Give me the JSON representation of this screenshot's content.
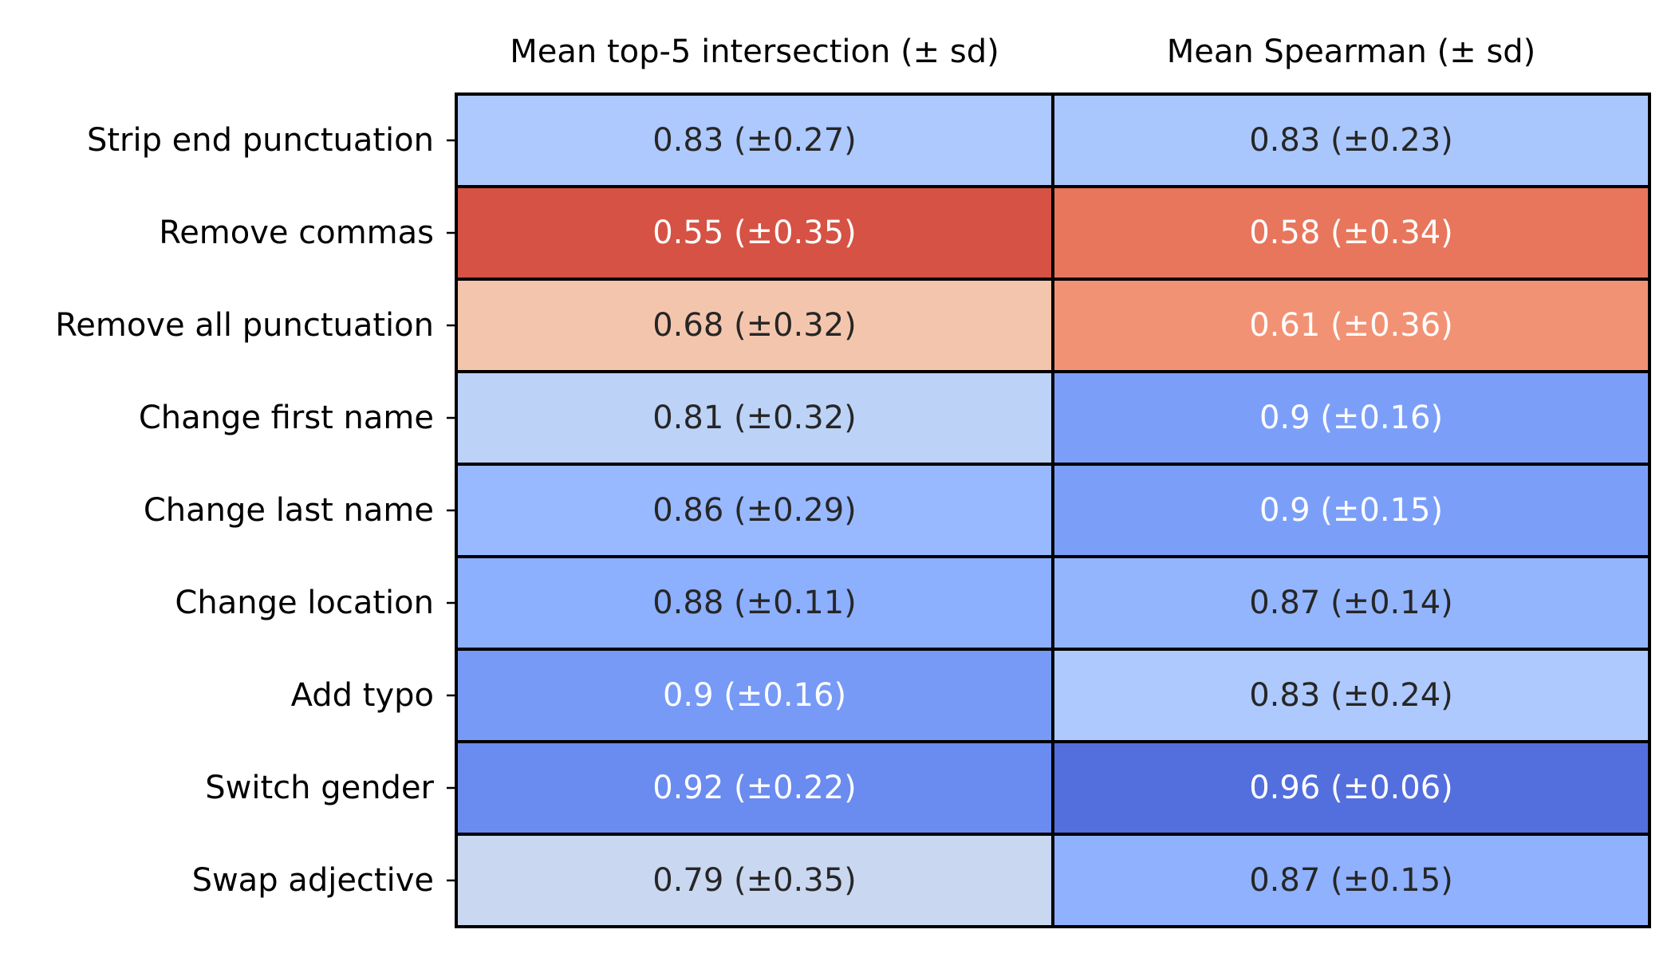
{
  "chart_data": {
    "type": "heatmap",
    "columns": [
      "Mean top-5 intersection (± sd)",
      "Mean Spearman (± sd)"
    ],
    "rows": [
      "Strip end punctuation",
      "Remove commas",
      "Remove all punctuation",
      "Change first name",
      "Change last name",
      "Change location",
      "Add typo",
      "Switch gender",
      "Swap adjective"
    ],
    "cells": [
      [
        {
          "label": "0.83 (±0.27)",
          "mean": 0.83,
          "sd": 0.27,
          "color": "#adc9fd",
          "text_color": "#262626"
        },
        {
          "label": "0.83 (±0.23)",
          "mean": 0.83,
          "sd": 0.23,
          "color": "#aac7fd",
          "text_color": "#262626"
        }
      ],
      [
        {
          "label": "0.55 (±0.35)",
          "mean": 0.55,
          "sd": 0.35,
          "color": "#d65244",
          "text_color": "#ffffff"
        },
        {
          "label": "0.58 (±0.34)",
          "mean": 0.58,
          "sd": 0.34,
          "color": "#e8765c",
          "text_color": "#ffffff"
        }
      ],
      [
        {
          "label": "0.68 (±0.32)",
          "mean": 0.68,
          "sd": 0.32,
          "color": "#f4c5ad",
          "text_color": "#262626"
        },
        {
          "label": "0.61 (±0.36)",
          "mean": 0.61,
          "sd": 0.36,
          "color": "#f29274",
          "text_color": "#ffffff"
        }
      ],
      [
        {
          "label": "0.81 (±0.32)",
          "mean": 0.81,
          "sd": 0.32,
          "color": "#bcd2f7",
          "text_color": "#262626"
        },
        {
          "label": "0.9 (±0.16)",
          "mean": 0.9,
          "sd": 0.16,
          "color": "#7b9ff9",
          "text_color": "#ffffff"
        }
      ],
      [
        {
          "label": "0.86 (±0.29)",
          "mean": 0.86,
          "sd": 0.29,
          "color": "#98b9ff",
          "text_color": "#262626"
        },
        {
          "label": "0.9 (±0.15)",
          "mean": 0.9,
          "sd": 0.15,
          "color": "#7b9ff9",
          "text_color": "#ffffff"
        }
      ],
      [
        {
          "label": "0.88 (±0.11)",
          "mean": 0.88,
          "sd": 0.11,
          "color": "#8caffe",
          "text_color": "#262626"
        },
        {
          "label": "0.87 (±0.14)",
          "mean": 0.87,
          "sd": 0.14,
          "color": "#93b5fe",
          "text_color": "#262626"
        }
      ],
      [
        {
          "label": "0.9 (±0.16)",
          "mean": 0.9,
          "sd": 0.16,
          "color": "#779af7",
          "text_color": "#ffffff"
        },
        {
          "label": "0.83 (±0.24)",
          "mean": 0.83,
          "sd": 0.24,
          "color": "#adc9fd",
          "text_color": "#262626"
        }
      ],
      [
        {
          "label": "0.92 (±0.22)",
          "mean": 0.92,
          "sd": 0.22,
          "color": "#6a8bef",
          "text_color": "#ffffff"
        },
        {
          "label": "0.96 (±0.06)",
          "mean": 0.96,
          "sd": 0.06,
          "color": "#536edd",
          "text_color": "#ffffff"
        }
      ],
      [
        {
          "label": "0.79 (±0.35)",
          "mean": 0.79,
          "sd": 0.35,
          "color": "#c9d7f0",
          "text_color": "#262626"
        },
        {
          "label": "0.87 (±0.15)",
          "mean": 0.87,
          "sd": 0.15,
          "color": "#8fb1fe",
          "text_color": "#262626"
        }
      ]
    ],
    "colormap": "coolwarm (reversed)",
    "legend": "none",
    "grid": "black cell borders"
  }
}
